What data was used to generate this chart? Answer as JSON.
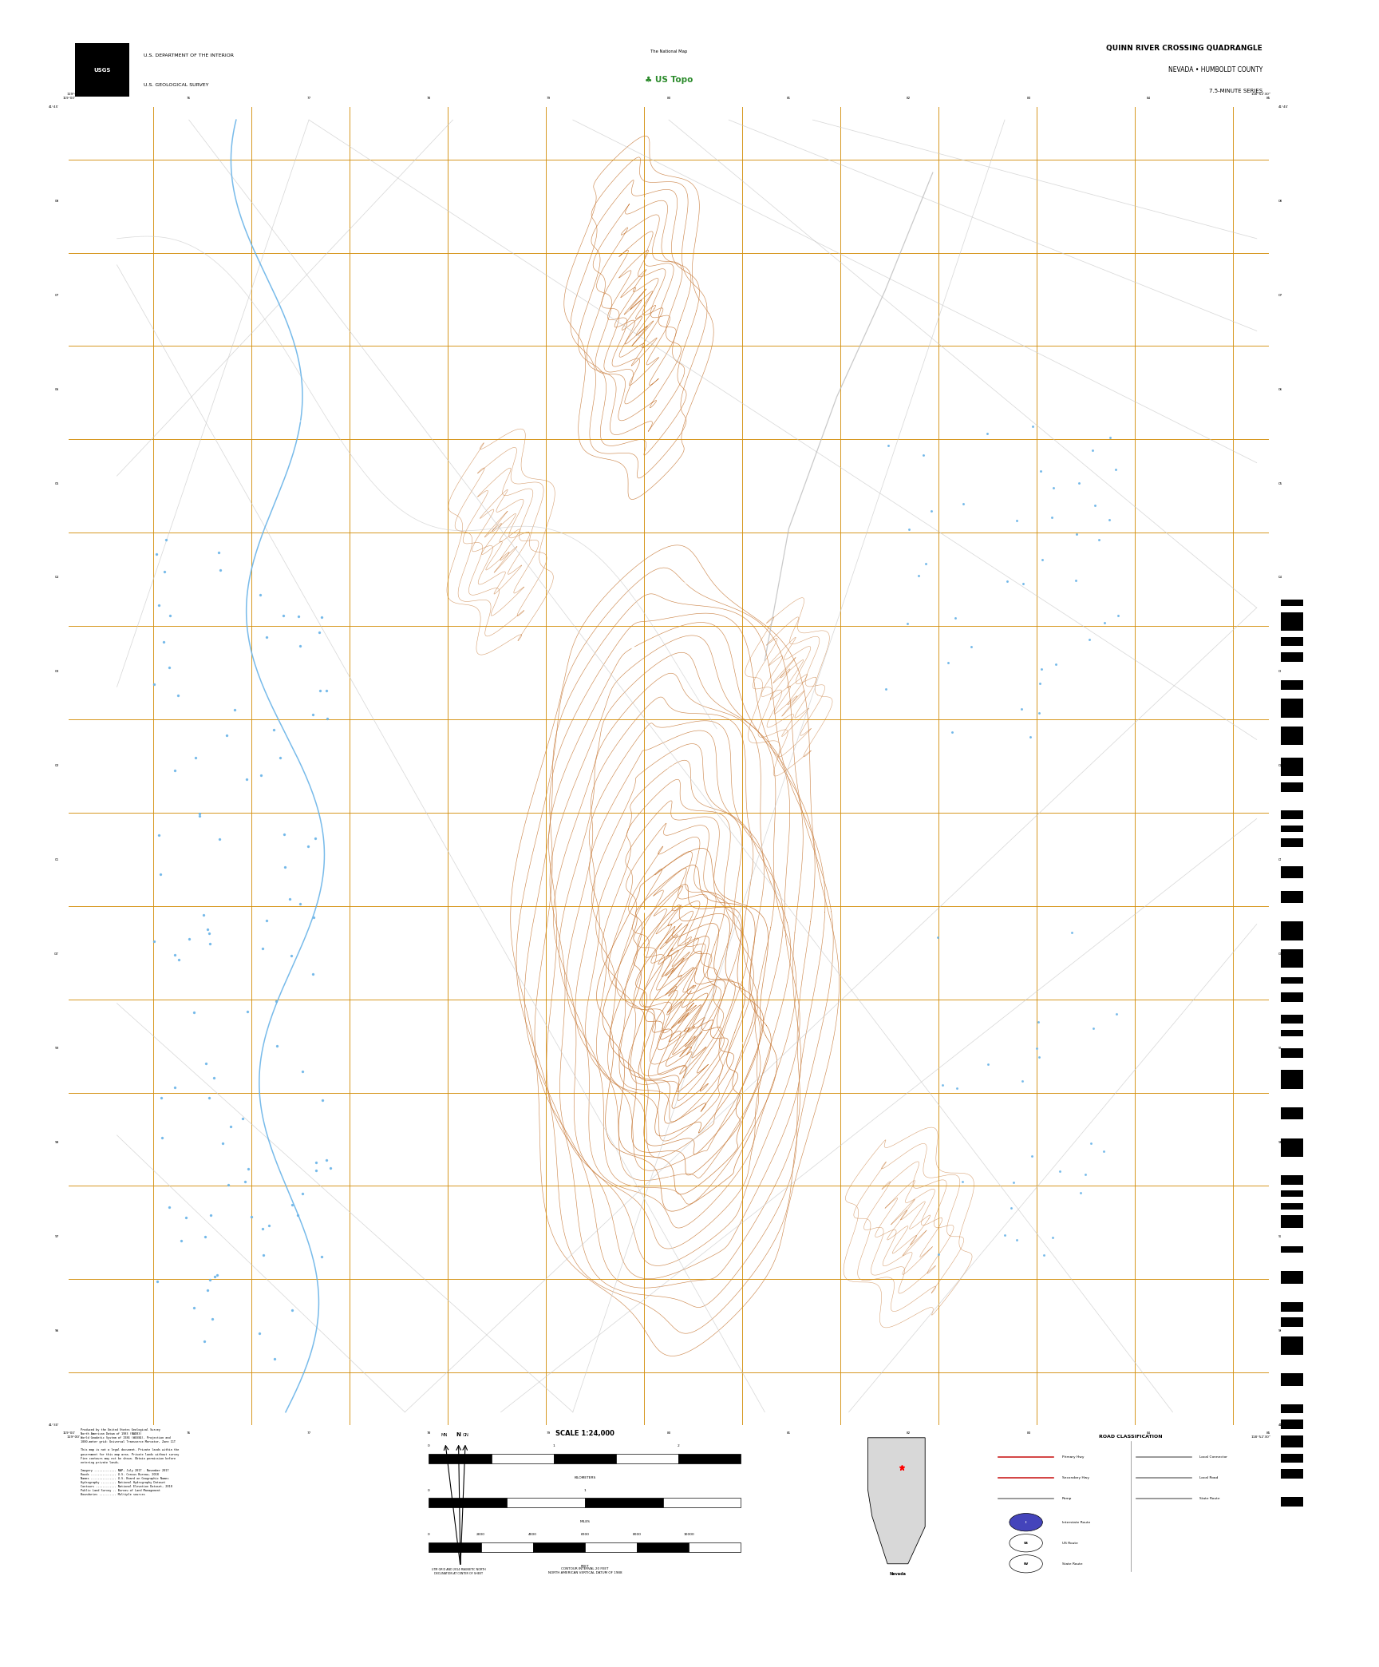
{
  "title": "QUINN RIVER CROSSING QUADRANGLE",
  "subtitle1": "NEVADA • HUMBOLDT COUNTY",
  "subtitle2": "7.5-MINUTE SERIES",
  "usgs_line1": "U.S. DEPARTMENT OF THE INTERIOR",
  "usgs_line2": "U.S. GEOLOGICAL SURVEY",
  "map_bg": "#000000",
  "border_bg": "#ffffff",
  "fig_width": 17.28,
  "fig_height": 20.88,
  "scale_text": "SCALE 1:24,000",
  "contour_color": "#c87c3c",
  "water_color": "#6ab4e8",
  "grid_color": "#d49010",
  "road_color": "#c8c8c8"
}
